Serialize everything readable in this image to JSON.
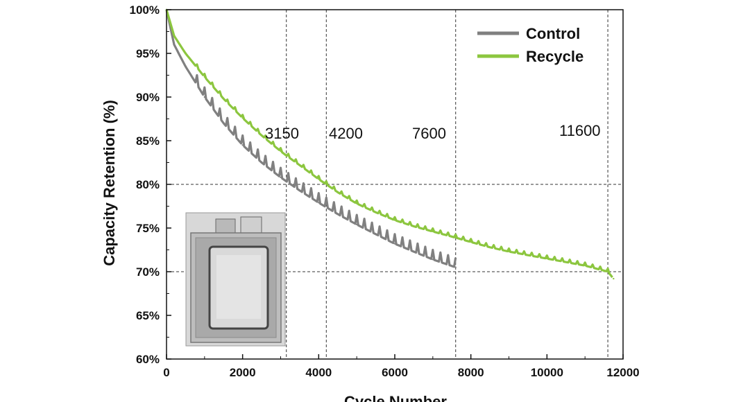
{
  "chart_data": {
    "type": "line",
    "title": "",
    "xlabel": "Cycle Number",
    "ylabel": "Capacity Retention (%)",
    "xlim": [
      0,
      12000
    ],
    "ylim": [
      60,
      100
    ],
    "x_ticks": [
      0,
      2000,
      4000,
      6000,
      8000,
      10000,
      12000
    ],
    "x_tick_labels": [
      "0",
      "2000",
      "4000",
      "6000",
      "8000",
      "10000",
      "12000"
    ],
    "y_ticks": [
      60,
      65,
      70,
      75,
      80,
      85,
      90,
      95,
      100
    ],
    "y_tick_labels": [
      "60%",
      "65%",
      "70%",
      "75%",
      "80%",
      "85%",
      "90%",
      "95%",
      "100%"
    ],
    "legend_position": "top-right",
    "series": [
      {
        "name": "Control",
        "color": "#808080",
        "x": [
          0,
          200,
          500,
          1000,
          1500,
          2000,
          2500,
          3000,
          3500,
          4000,
          4500,
          5000,
          5500,
          6000,
          6500,
          7000,
          7600
        ],
        "y": [
          100,
          96.0,
          93.5,
          90.0,
          87.0,
          84.5,
          82.5,
          80.8,
          79.3,
          77.9,
          76.6,
          75.4,
          74.3,
          73.2,
          72.3,
          71.4,
          70.5
        ]
      },
      {
        "name": "Recycle",
        "color": "#8cc63f",
        "x": [
          0,
          200,
          500,
          1000,
          1500,
          2000,
          2500,
          3000,
          3150,
          3500,
          4000,
          4200,
          4500,
          5000,
          5500,
          6000,
          6500,
          7000,
          7600,
          8000,
          8500,
          9000,
          9500,
          10000,
          10500,
          11000,
          11600,
          11750
        ],
        "y": [
          100,
          97.0,
          95.0,
          92.3,
          89.8,
          87.6,
          85.6,
          83.8,
          83.3,
          82.2,
          80.6,
          80.0,
          79.1,
          77.8,
          76.8,
          75.9,
          75.2,
          74.6,
          73.9,
          73.4,
          72.8,
          72.3,
          71.9,
          71.5,
          71.1,
          70.7,
          70.0,
          69.2
        ]
      }
    ],
    "reference_lines": {
      "horizontal": [
        80,
        70
      ],
      "vertical": [
        3150,
        4200,
        7600,
        11600
      ]
    },
    "annotations": [
      "3150",
      "4200",
      "7600",
      "11600"
    ]
  }
}
